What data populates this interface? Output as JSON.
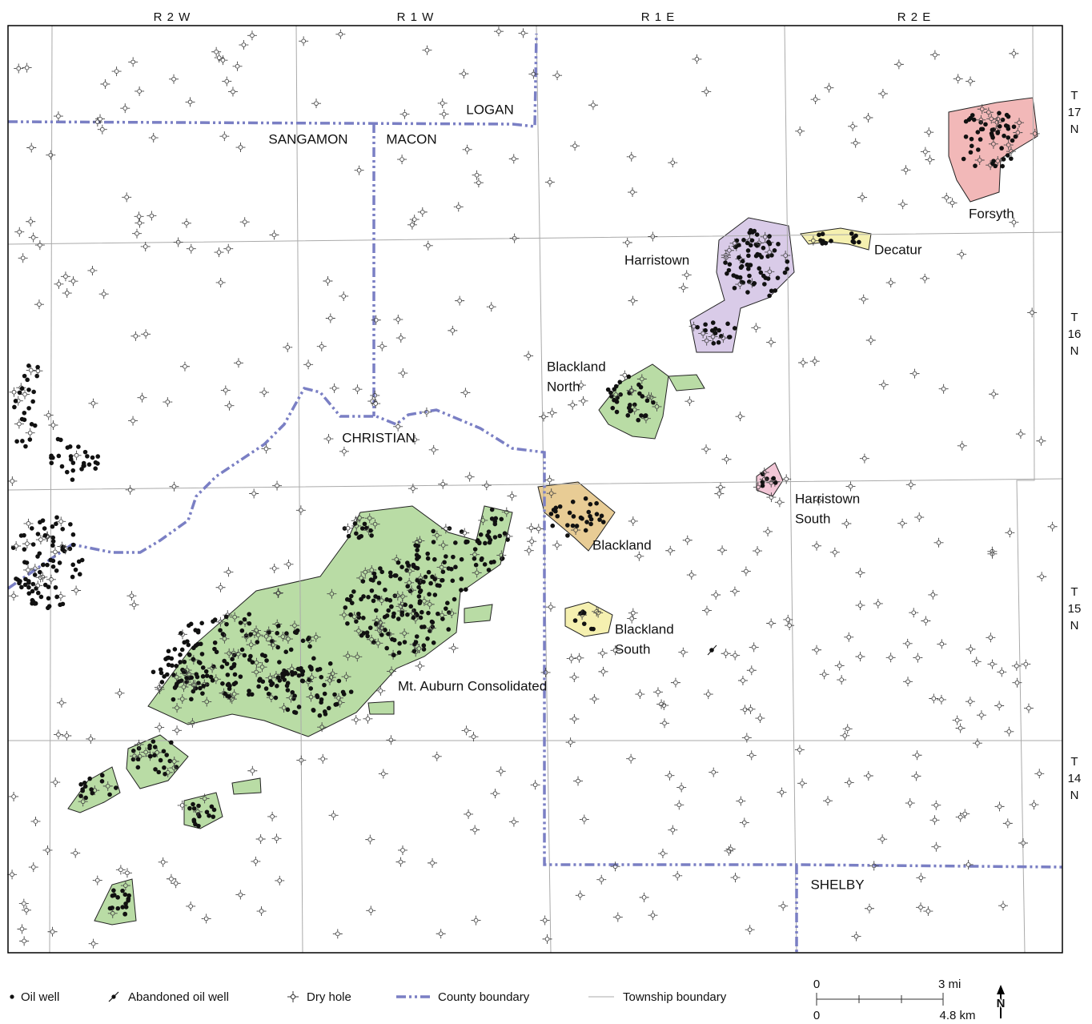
{
  "ranges": [
    "R 2 W",
    "R 1 W",
    "R 1 E",
    "R 2 E"
  ],
  "townships": [
    [
      "T",
      "17",
      "N"
    ],
    [
      "T",
      "16",
      "N"
    ],
    [
      "T",
      "15",
      "N"
    ],
    [
      "T",
      "14",
      "N"
    ]
  ],
  "counties": [
    "LOGAN",
    "SANGAMON",
    "MACON",
    "CHRISTIAN",
    "SHELBY"
  ],
  "fields": [
    [
      "Forsyth"
    ],
    [
      "Decatur"
    ],
    [
      "Harristown"
    ],
    [
      "Blackland",
      "North"
    ],
    [
      "Harristown",
      "South"
    ],
    [
      "Blackland"
    ],
    [
      "Blackland",
      "South"
    ],
    [
      "Mt. Auburn Consolidated"
    ]
  ],
  "legend": [
    "Oil well",
    "Abandoned oil well",
    "Dry hole",
    "County boundary",
    "Township boundary"
  ],
  "scale": {
    "miles": [
      "0",
      "3 mi"
    ],
    "kilometers": [
      "0",
      "4.8 km"
    ]
  },
  "north": "N"
}
